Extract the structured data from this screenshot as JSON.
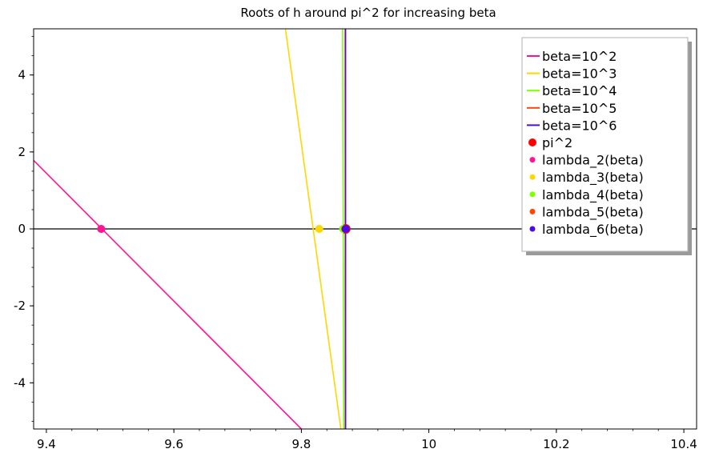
{
  "chart_data": {
    "type": "line",
    "title": "Roots of h around pi^2 for increasing beta",
    "xlabel": "",
    "ylabel": "",
    "xlim": [
      9.38,
      10.42
    ],
    "ylim": [
      -5.2,
      5.2
    ],
    "x_ticks": [
      9.4,
      9.6,
      9.8,
      10.0,
      10.2,
      10.4
    ],
    "x_tick_labels": [
      "9.4",
      "9.6",
      "9.8",
      "10",
      "10.2",
      "10.4"
    ],
    "y_ticks": [
      -4,
      -2,
      0,
      2,
      4
    ],
    "y_tick_labels": [
      "-4",
      "-2",
      "0",
      "2",
      "4"
    ],
    "grid": false,
    "legend_position": "top-right",
    "series": [
      {
        "name": "beta=10^2",
        "color": "#ff1493",
        "x": [
          9.38,
          9.8
        ],
        "y": [
          1.78,
          -5.2
        ]
      },
      {
        "name": "beta=10^3",
        "color": "#ffd700",
        "x": [
          9.775,
          9.862
        ],
        "y": [
          5.2,
          -5.2
        ]
      },
      {
        "name": "beta=10^4",
        "color": "#7fff00",
        "x": [
          9.8647,
          9.8665
        ],
        "y": [
          5.2,
          -5.2
        ]
      },
      {
        "name": "beta=10^5",
        "color": "#ff4500",
        "x": [
          9.8687,
          9.8689
        ],
        "y": [
          5.2,
          -5.2
        ]
      },
      {
        "name": "beta=10^6",
        "color": "#4b0ae8",
        "x": [
          9.8693,
          9.8694
        ],
        "y": [
          5.2,
          -5.2
        ]
      }
    ],
    "points": [
      {
        "name": "pi^2",
        "color": "#ff0000",
        "x": 9.8696,
        "y": 0,
        "size": "large"
      },
      {
        "name": "lambda_2(beta)",
        "color": "#ff1493",
        "x": 9.486,
        "y": 0,
        "size": "small"
      },
      {
        "name": "lambda_3(beta)",
        "color": "#ffd700",
        "x": 9.828,
        "y": 0,
        "size": "small"
      },
      {
        "name": "lambda_4(beta)",
        "color": "#7fff00",
        "x": 9.8655,
        "y": 0,
        "size": "small"
      },
      {
        "name": "lambda_5(beta)",
        "color": "#ff4500",
        "x": 9.8688,
        "y": 0,
        "size": "small"
      },
      {
        "name": "lambda_6(beta)",
        "color": "#4b0ae8",
        "x": 9.8694,
        "y": 0,
        "size": "small"
      }
    ],
    "zero_line": {
      "y": 0,
      "color": "#000000"
    }
  }
}
